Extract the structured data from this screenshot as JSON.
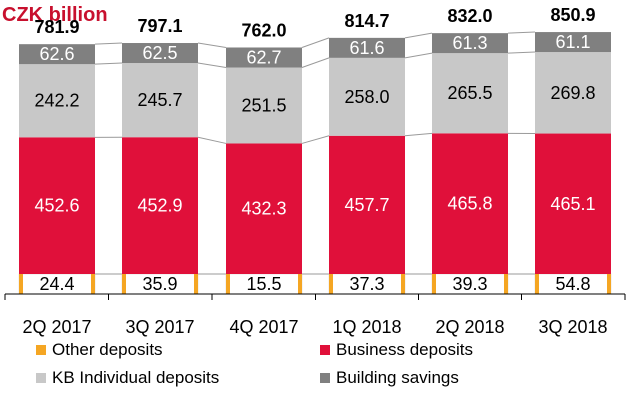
{
  "chart_data": {
    "type": "bar",
    "stacked": true,
    "title": "CZK billion",
    "categories": [
      "2Q 2017",
      "3Q 2017",
      "4Q 2017",
      "1Q 2018",
      "2Q 2018",
      "3Q 2018"
    ],
    "totals": [
      "781.9",
      "797.1",
      "762.0",
      "814.7",
      "832.0",
      "850.9"
    ],
    "series": [
      {
        "name": "Other deposits",
        "color": "#f5a623",
        "values": [
          24.4,
          35.9,
          15.5,
          37.3,
          39.3,
          54.8
        ]
      },
      {
        "name": "Business deposits",
        "color": "#e0103a",
        "values": [
          452.6,
          452.9,
          432.3,
          457.7,
          465.8,
          465.1
        ]
      },
      {
        "name": "KB Individual deposits",
        "color": "#c8c8c8",
        "values": [
          242.2,
          245.7,
          251.5,
          258.0,
          265.5,
          269.8
        ]
      },
      {
        "name": "Building savings",
        "color": "#808080",
        "values": [
          62.6,
          62.5,
          62.7,
          61.6,
          61.3,
          61.1
        ]
      }
    ],
    "legend_position": "bottom",
    "grid": false
  }
}
